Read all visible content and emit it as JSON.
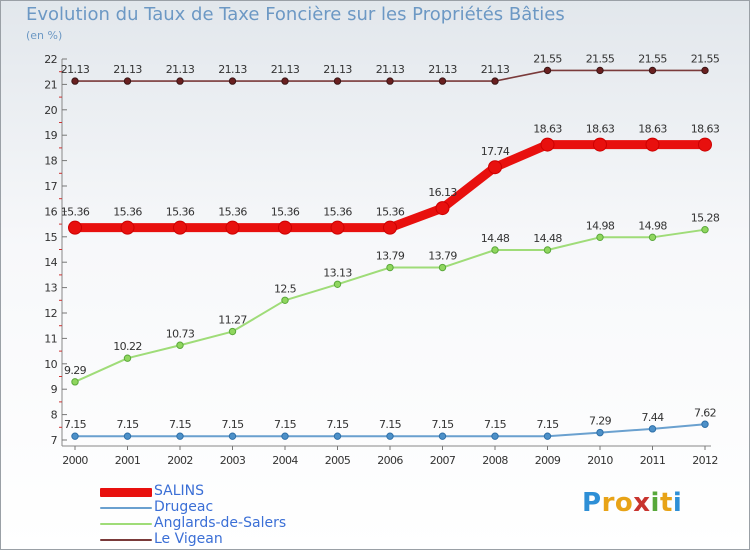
{
  "title": "Evolution du Taux de Taxe Foncière sur les Propriétés Bâties",
  "unit_label": "(en %)",
  "brand": {
    "letters": [
      "P",
      "r",
      "o",
      "x",
      "i",
      "t",
      "i"
    ],
    "colors": [
      "#2e8fd6",
      "#e8a317",
      "#e8a317",
      "#c8342e",
      "#58a83a",
      "#e8a317",
      "#2e8fd6"
    ]
  },
  "chart_data": {
    "type": "line",
    "title": "Evolution du Taux de Taxe Foncière sur les Propriétés Bâties",
    "ylabel": "(en %)",
    "xlabel": "",
    "x": [
      "2000",
      "2001",
      "2002",
      "2003",
      "2004",
      "2005",
      "2006",
      "2007",
      "2008",
      "2009",
      "2010",
      "2011",
      "2012"
    ],
    "ylim": [
      7,
      22
    ],
    "yticks": [
      7,
      8,
      9,
      10,
      11,
      12,
      13,
      14,
      15,
      16,
      17,
      18,
      19,
      20,
      21,
      22
    ],
    "grid": false,
    "legend_position": "bottom-left",
    "series": [
      {
        "name": "SALINS",
        "color": "#e8100e",
        "values": [
          15.36,
          15.36,
          15.36,
          15.36,
          15.36,
          15.36,
          15.36,
          16.13,
          17.74,
          18.63,
          18.63,
          18.63,
          18.63
        ],
        "labels": [
          "15.36",
          "15.36",
          "15.36",
          "15.36",
          "15.36",
          "15.36",
          "15.36",
          "16.13",
          "17.74",
          "18.63",
          "18.63",
          "18.63",
          "18.63"
        ]
      },
      {
        "name": "Drugeac",
        "color": "#6aa0cf",
        "values": [
          7.15,
          7.15,
          7.15,
          7.15,
          7.15,
          7.15,
          7.15,
          7.15,
          7.15,
          7.15,
          7.29,
          7.44,
          7.62
        ],
        "labels": [
          "7.15",
          "7.15",
          "7.15",
          "7.15",
          "7.15",
          "7.15",
          "7.15",
          "7.15",
          "7.15",
          "7.15",
          "7.29",
          "7.44",
          "7.62"
        ]
      },
      {
        "name": "Anglards-de-Salers",
        "color": "#9fdc78",
        "values": [
          9.29,
          10.22,
          10.73,
          11.27,
          12.5,
          13.13,
          13.79,
          13.79,
          14.48,
          14.48,
          14.98,
          14.98,
          15.28
        ],
        "labels": [
          "9.29",
          "10.22",
          "10.73",
          "11.27",
          "12.5",
          "13.13",
          "13.79",
          "13.79",
          "14.48",
          "14.48",
          "14.98",
          "14.98",
          "15.28"
        ]
      },
      {
        "name": "Le Vigean",
        "color": "#7a3a3a",
        "values": [
          21.13,
          21.13,
          21.13,
          21.13,
          21.13,
          21.13,
          21.13,
          21.13,
          21.13,
          21.55,
          21.55,
          21.55,
          21.55
        ],
        "labels": [
          "21.13",
          "21.13",
          "21.13",
          "21.13",
          "21.13",
          "21.13",
          "21.13",
          "21.13",
          "21.13",
          "21.55",
          "21.55",
          "21.55",
          "21.55"
        ]
      }
    ]
  }
}
